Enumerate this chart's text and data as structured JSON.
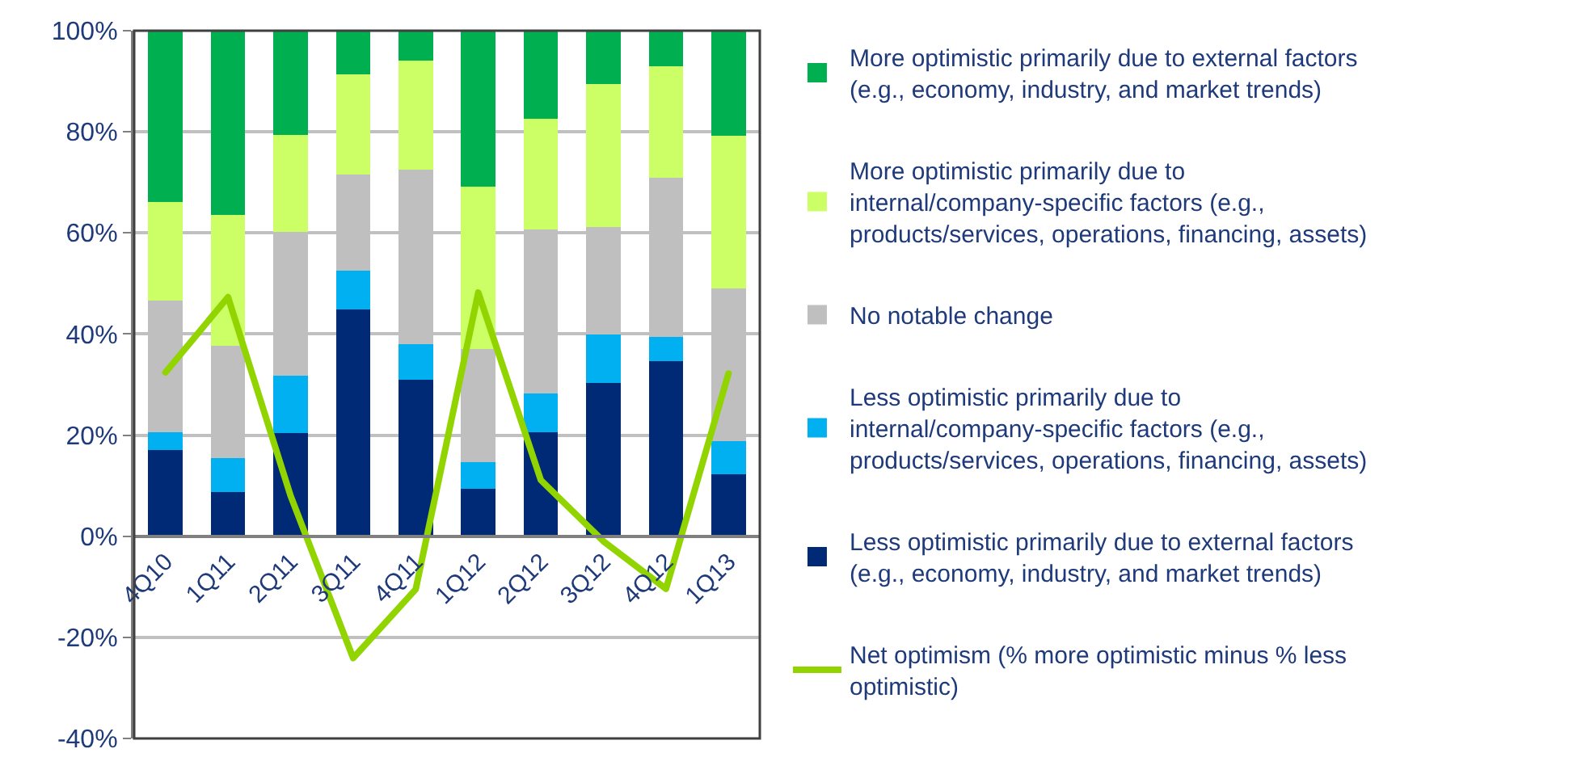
{
  "chart_data": {
    "type": "bar",
    "stacked": true,
    "categories": [
      "4Q10",
      "1Q11",
      "2Q11",
      "3Q11",
      "4Q11",
      "1Q12",
      "2Q12",
      "3Q12",
      "4Q12",
      "1Q13"
    ],
    "series": [
      {
        "name": "Less optimistic primarily due to external factors (e.g., economy, industry, and market trends)",
        "color": "#002a75",
        "values": [
          17.1,
          8.8,
          20.4,
          44.9,
          31.0,
          9.4,
          20.6,
          30.4,
          34.6,
          12.2
        ]
      },
      {
        "name": "Less optimistic primarily due to internal/company-specific factors (e.g., products/services, operations, financing, assets)",
        "color": "#00b0f0",
        "values": [
          3.4,
          6.7,
          11.4,
          7.7,
          7.0,
          5.3,
          7.6,
          9.5,
          4.9,
          6.6
        ]
      },
      {
        "name": "No notable change",
        "color": "#bfbfbf",
        "values": [
          26.1,
          22.1,
          28.4,
          18.9,
          34.5,
          22.4,
          32.5,
          21.2,
          31.4,
          30.2
        ]
      },
      {
        "name": "More optimistic primarily due to internal/company-specific factors (e.g., products/services, operations, financing, assets)",
        "color": "#ccff66",
        "values": [
          19.6,
          25.9,
          19.2,
          19.8,
          21.6,
          32.0,
          21.9,
          28.3,
          22.1,
          30.2
        ]
      },
      {
        "name": "More optimistic primarily due to external factors (e.g., economy, industry, and market trends)",
        "color": "#00b050",
        "values": [
          33.8,
          36.5,
          20.6,
          8.7,
          5.9,
          30.9,
          17.4,
          10.6,
          7.0,
          20.8
        ]
      },
      {
        "name": "Net optimism (% more optimistic minus % less optimistic)",
        "type": "line",
        "color": "#92d400",
        "values": [
          32.4,
          47.3,
          8.0,
          -24.1,
          -10.5,
          48.2,
          11.1,
          -1.0,
          -10.4,
          32.2
        ]
      }
    ],
    "ylim": [
      -40,
      100
    ],
    "yticks": [
      {
        "value": -40,
        "label": "-40%"
      },
      {
        "value": -20,
        "label": "-20%"
      },
      {
        "value": 0,
        "label": "0%"
      },
      {
        "value": 20,
        "label": "20%"
      },
      {
        "value": 40,
        "label": "40%"
      },
      {
        "value": 60,
        "label": "60%"
      },
      {
        "value": 80,
        "label": "80%"
      },
      {
        "value": 100,
        "label": "100%"
      }
    ],
    "grid": "y",
    "legend": "right",
    "marker": "none",
    "line_style": "solid"
  }
}
